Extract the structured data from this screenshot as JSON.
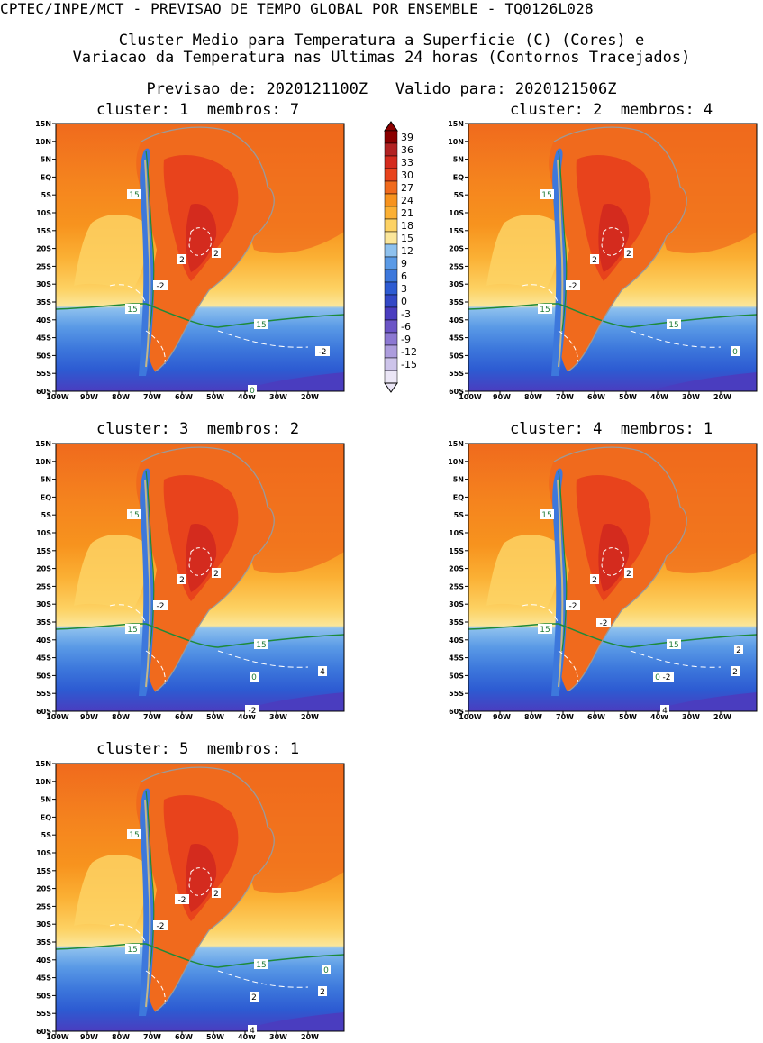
{
  "header": {
    "line1": "CPTEC/INPE/MCT - PREVISAO DE TEMPO GLOBAL POR ENSEMBLE - TQ0126L028",
    "line2": "Cluster Medio para Temperatura a Superficie (C) (Cores) e",
    "line3": "Variacao da Temperatura nas Ultimas 24 horas (Contornos Tracejados)",
    "line4": "Previsao de: 2020121100Z   Valido para: 2020121506Z"
  },
  "panels": [
    {
      "title": "cluster: 1  membros: 7",
      "labels": [
        "15",
        "15",
        "15",
        "-2",
        "2",
        "2",
        "-2",
        "0"
      ]
    },
    {
      "title": "cluster: 2  membros: 4",
      "labels": [
        "15",
        "15",
        "15",
        "-2",
        "2",
        "2",
        "0"
      ]
    },
    {
      "title": "cluster: 3  membros: 2",
      "labels": [
        "15",
        "15",
        "15",
        "-2",
        "2",
        "2",
        "4",
        "-2",
        "0"
      ]
    },
    {
      "title": "cluster: 4  membros: 1",
      "labels": [
        "15",
        "15",
        "15",
        "-2",
        "2",
        "2",
        "2",
        "4",
        "-2",
        "2",
        "-2",
        "0"
      ]
    },
    {
      "title": "cluster: 5  membros: 1",
      "labels": [
        "15",
        "15",
        "15",
        "-2",
        "-2",
        "2",
        "2",
        "4",
        "2",
        "0"
      ]
    }
  ],
  "axes": {
    "lat_ticks": [
      "15N",
      "10N",
      "5N",
      "EQ",
      "5S",
      "10S",
      "15S",
      "20S",
      "25S",
      "30S",
      "35S",
      "40S",
      "45S",
      "50S",
      "55S",
      "60S"
    ],
    "lon_ticks": [
      "100W",
      "90W",
      "80W",
      "70W",
      "60W",
      "50W",
      "40W",
      "30W",
      "20W"
    ]
  },
  "colorbar": {
    "labels": [
      "39",
      "36",
      "33",
      "30",
      "27",
      "24",
      "21",
      "18",
      "15",
      "12",
      "9",
      "6",
      "3",
      "0",
      "-3",
      "-6",
      "-9",
      "-12",
      "-15"
    ],
    "colors": [
      "#8b0000",
      "#b22222",
      "#d42b1e",
      "#e8431c",
      "#f06a1d",
      "#f7931e",
      "#fbb034",
      "#fdd264",
      "#fbe69a",
      "#8ec1ee",
      "#5a9ae6",
      "#3d78dc",
      "#2d5bd2",
      "#3348c6",
      "#4a3dbf",
      "#6b55c6",
      "#8c78d2",
      "#ad9ddd",
      "#cdc4ea",
      "#ebe6f6"
    ]
  }
}
